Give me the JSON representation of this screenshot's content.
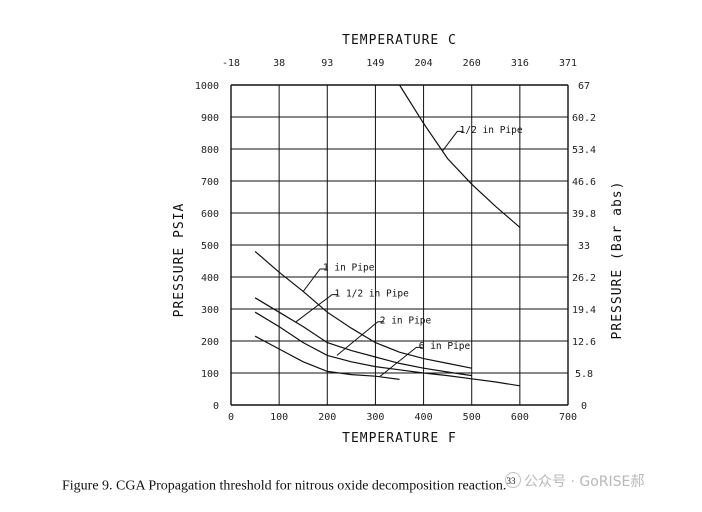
{
  "chart_data": {
    "type": "line",
    "top_axis_title": "TEMPERATURE C",
    "top_ticks": [
      "-18",
      "38",
      "93",
      "149",
      "204",
      "260",
      "316",
      "371"
    ],
    "xlabel": "TEMPERATURE F",
    "x_ticks": [
      "0",
      "100",
      "200",
      "300",
      "400",
      "500",
      "600",
      "700"
    ],
    "xlim": [
      0,
      700
    ],
    "ylabel": "PRESSURE PSIA",
    "y_ticks": [
      "0",
      "100",
      "200",
      "300",
      "400",
      "500",
      "600",
      "700",
      "800",
      "900",
      "1000"
    ],
    "ylim": [
      0,
      1000
    ],
    "right_axis_title": "PRESSURE (Bar abs)",
    "right_ticks": [
      "0",
      "5.8",
      "12.6",
      "19.4",
      "26.2",
      "33",
      "39.8",
      "46.6",
      "53.4",
      "60.2",
      "67"
    ],
    "grid": true,
    "series": [
      {
        "name": "1/2 in Pipe",
        "x": [
          350,
          400,
          450,
          500,
          550,
          600
        ],
        "y": [
          1000,
          880,
          770,
          690,
          620,
          555
        ]
      },
      {
        "name": "1 in Pipe",
        "x": [
          50,
          100,
          150,
          200,
          250,
          300,
          350,
          400,
          450,
          500
        ],
        "y": [
          480,
          415,
          355,
          290,
          240,
          195,
          165,
          145,
          130,
          115
        ]
      },
      {
        "name": "1 1/2 in Pipe",
        "x": [
          50,
          100,
          150,
          200,
          250,
          300,
          350,
          400,
          450,
          500
        ],
        "y": [
          335,
          290,
          245,
          195,
          170,
          150,
          130,
          115,
          103,
          92
        ]
      },
      {
        "name": "2 in Pipe",
        "x": [
          50,
          100,
          150,
          200,
          250,
          300,
          350,
          400,
          450,
          500,
          550,
          600
        ],
        "y": [
          290,
          245,
          195,
          155,
          135,
          120,
          110,
          100,
          92,
          82,
          72,
          60
        ]
      },
      {
        "name": "6 in Pipe",
        "x": [
          50,
          100,
          150,
          200,
          250,
          300,
          350
        ],
        "y": [
          215,
          175,
          135,
          105,
          95,
          90,
          80
        ]
      }
    ],
    "annotations": [
      {
        "text": "1/2 in Pipe",
        "series": 0
      },
      {
        "text": "1 in Pipe",
        "series": 1
      },
      {
        "text": "1 1/2 in Pipe",
        "series": 2
      },
      {
        "text": "2 in Pipe",
        "series": 3
      },
      {
        "text": "6 in Pipe",
        "series": 4
      }
    ]
  },
  "caption": {
    "text": "Figure 9.  CGA Propagation threshold for nitrous oxide decomposition reaction.",
    "ref": "33"
  },
  "watermark": "公众号 · GoRISE郝"
}
